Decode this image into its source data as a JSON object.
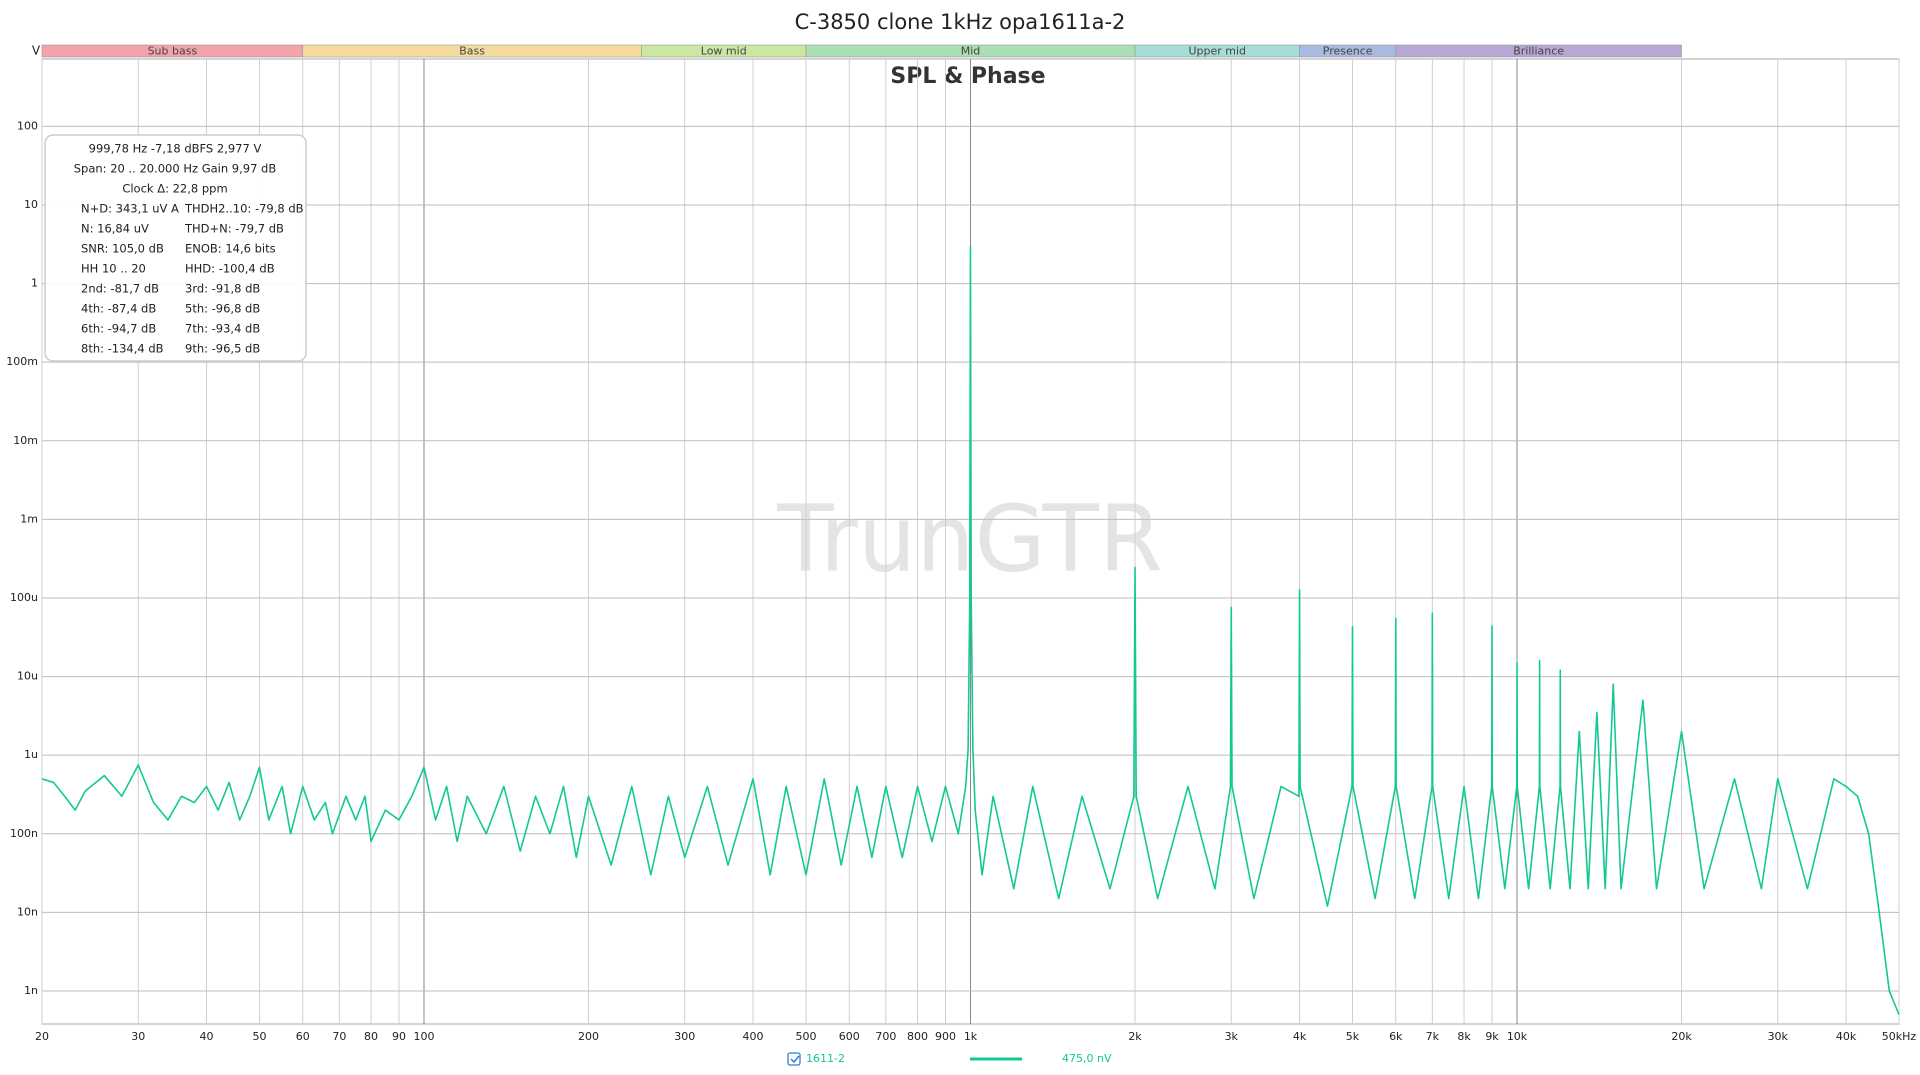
{
  "chart_data": {
    "type": "line",
    "title": "C-3850 clone 1kHz opa1611a-2",
    "subtitle": "SPL & Phase",
    "y_unit": "V",
    "watermark": "TrunGTR",
    "log_x": true,
    "log_y": true,
    "grid": true,
    "xlim": [
      20,
      50000
    ],
    "ylim": [
      3.8e-10,
      720
    ],
    "xticks": [
      20,
      30,
      40,
      50,
      60,
      70,
      80,
      90,
      100,
      200,
      300,
      400,
      500,
      600,
      700,
      800,
      900,
      {
        "value": 1000,
        "label": "1k"
      },
      {
        "value": 2000,
        "label": "2k"
      },
      {
        "value": 3000,
        "label": "3k"
      },
      {
        "value": 4000,
        "label": "4k"
      },
      {
        "value": 5000,
        "label": "5k"
      },
      {
        "value": 6000,
        "label": "6k"
      },
      {
        "value": 7000,
        "label": "7k"
      },
      {
        "value": 8000,
        "label": "8k"
      },
      {
        "value": 9000,
        "label": "9k"
      },
      {
        "value": 10000,
        "label": "10k"
      },
      {
        "value": 20000,
        "label": "20k"
      },
      {
        "value": 30000,
        "label": "30k"
      },
      {
        "value": 40000,
        "label": "40k"
      },
      {
        "value": 50000,
        "label": "50kHz"
      }
    ],
    "yticks": [
      {
        "value": 1e-09,
        "label": "1n"
      },
      {
        "value": 1e-08,
        "label": "10n"
      },
      {
        "value": 1e-07,
        "label": "100n"
      },
      {
        "value": 1e-06,
        "label": "1u"
      },
      {
        "value": 1e-05,
        "label": "10u"
      },
      {
        "value": 0.0001,
        "label": "100u"
      },
      {
        "value": 0.001,
        "label": "1m"
      },
      {
        "value": 0.01,
        "label": "10m"
      },
      {
        "value": 0.1,
        "label": "100m"
      },
      1,
      10,
      100
    ],
    "bands": [
      {
        "label": "Sub bass",
        "start": 20,
        "end": 60,
        "color": "#f2a3ab"
      },
      {
        "label": "Bass",
        "start": 60,
        "end": 250,
        "color": "#f6dc9c"
      },
      {
        "label": "Low mid",
        "start": 250,
        "end": 500,
        "color": "#cbe7a2"
      },
      {
        "label": "Mid",
        "start": 500,
        "end": 2000,
        "color": "#a9dfb2"
      },
      {
        "label": "Upper mid",
        "start": 2000,
        "end": 4000,
        "color": "#a6ddd6"
      },
      {
        "label": "Presence",
        "start": 4000,
        "end": 6000,
        "color": "#a8badf"
      },
      {
        "label": "Brilliance",
        "start": 6000,
        "end": 20000,
        "color": "#b8a6d6"
      }
    ],
    "annotations": [
      [
        "999,78 Hz  -7,18 dBFS  2,977 V"
      ],
      [
        "Span: 20 .. 20.000 Hz   Gain 9,97 dB"
      ],
      [
        "Clock Δ: 22,8 ppm"
      ],
      [
        "N+D: 343,1 uV A",
        "THDH2..10: -79,8 dB"
      ],
      [
        "N: 16,84 uV",
        "THD+N: -79,7 dB"
      ],
      [
        "SNR: 105,0 dB",
        "ENOB: 14,6 bits"
      ],
      [
        "HH 10 .. 20",
        "HHD: -100,4 dB"
      ],
      [
        "2nd: -81,7 dB",
        "3rd: -91,8 dB"
      ],
      [
        "4th: -87,4 dB",
        "5th: -96,8 dB"
      ],
      [
        "6th: -94,7 dB",
        "7th: -93,4 dB"
      ],
      [
        "8th: -134,4 dB",
        "9th: -96,5 dB"
      ]
    ],
    "x": [
      20,
      21,
      22,
      23,
      24,
      26,
      28,
      30,
      32,
      34,
      36,
      38,
      40,
      42,
      44,
      46,
      48,
      50,
      52,
      55,
      57,
      60,
      63,
      66,
      68,
      72,
      75,
      78,
      80,
      85,
      90,
      95,
      100,
      105,
      110,
      115,
      120,
      130,
      140,
      150,
      160,
      170,
      180,
      190,
      200,
      220,
      240,
      260,
      280,
      300,
      330,
      360,
      400,
      430,
      460,
      500,
      540,
      580,
      620,
      660,
      700,
      750,
      800,
      850,
      900,
      950,
      980,
      990,
      997,
      999.78,
      1003,
      1010,
      1020,
      1050,
      1100,
      1200,
      1300,
      1450,
      1600,
      1800,
      1990,
      2000,
      2010,
      2200,
      2500,
      2800,
      2990,
      3000,
      3010,
      3300,
      3700,
      3990,
      4000,
      4010,
      4500,
      4990,
      5000,
      5010,
      5500,
      5990,
      6000,
      6010,
      6500,
      6990,
      7000,
      7010,
      7500,
      8000,
      8500,
      8990,
      9000,
      9010,
      9500,
      9990,
      10000,
      10010,
      10500,
      10990,
      11000,
      11010,
      11500,
      11990,
      12000,
      12010,
      12500,
      13000,
      13500,
      14000,
      14500,
      15000,
      15500,
      17000,
      18000,
      20000,
      22000,
      25000,
      28000,
      30000,
      34000,
      38000,
      40000,
      42000,
      44000,
      46000,
      48000,
      50000
    ],
    "series": [
      {
        "name": "1611-2",
        "legend_value": "475,0 nV",
        "color": "#12c996",
        "values": [
          5e-07,
          4.5e-07,
          3e-07,
          2e-07,
          3.5e-07,
          5.5e-07,
          3e-07,
          7.5e-07,
          2.5e-07,
          1.5e-07,
          3e-07,
          2.5e-07,
          4e-07,
          2e-07,
          4.5e-07,
          1.5e-07,
          3e-07,
          7e-07,
          1.5e-07,
          4e-07,
          1e-07,
          4e-07,
          1.5e-07,
          2.5e-07,
          1e-07,
          3e-07,
          1.5e-07,
          3e-07,
          8e-08,
          2e-07,
          1.5e-07,
          3e-07,
          7e-07,
          1.5e-07,
          4e-07,
          8e-08,
          3e-07,
          1e-07,
          4e-07,
          6e-08,
          3e-07,
          1e-07,
          4e-07,
          5e-08,
          3e-07,
          4e-08,
          4e-07,
          3e-08,
          3e-07,
          5e-08,
          4e-07,
          4e-08,
          5e-07,
          3e-08,
          4e-07,
          3e-08,
          5e-07,
          4e-08,
          4e-07,
          5e-08,
          4e-07,
          5e-08,
          4e-07,
          8e-08,
          4e-07,
          1e-07,
          4e-07,
          1.2e-06,
          0.0001,
          2.977,
          0.0001,
          1.2e-06,
          2e-07,
          3e-08,
          3e-07,
          2e-08,
          4e-07,
          1.5e-08,
          3e-07,
          2e-08,
          3e-07,
          0.000245,
          3e-07,
          1.5e-08,
          4e-07,
          2e-08,
          4e-07,
          7.6e-05,
          4e-07,
          1.5e-08,
          4e-07,
          3e-07,
          0.000127,
          4e-07,
          1.2e-08,
          4e-07,
          4.3e-05,
          4e-07,
          1.5e-08,
          4e-07,
          5.5e-05,
          4e-07,
          1.5e-08,
          4e-07,
          6.4e-05,
          4e-07,
          1.5e-08,
          4e-07,
          1.5e-08,
          4e-07,
          4.4e-05,
          4e-07,
          2e-08,
          4e-07,
          1.5e-05,
          4e-07,
          2e-08,
          4e-07,
          1.6e-05,
          4e-07,
          2e-08,
          4e-07,
          1.2e-05,
          4e-07,
          2e-08,
          2e-06,
          2e-08,
          3.5e-06,
          2e-08,
          8e-06,
          2e-08,
          5e-06,
          2e-08,
          2e-06,
          2e-08,
          5e-07,
          2e-08,
          5e-07,
          2e-08,
          5e-07,
          4e-07,
          3e-07,
          1e-07,
          1e-08,
          1e-09,
          5e-10
        ]
      }
    ]
  }
}
